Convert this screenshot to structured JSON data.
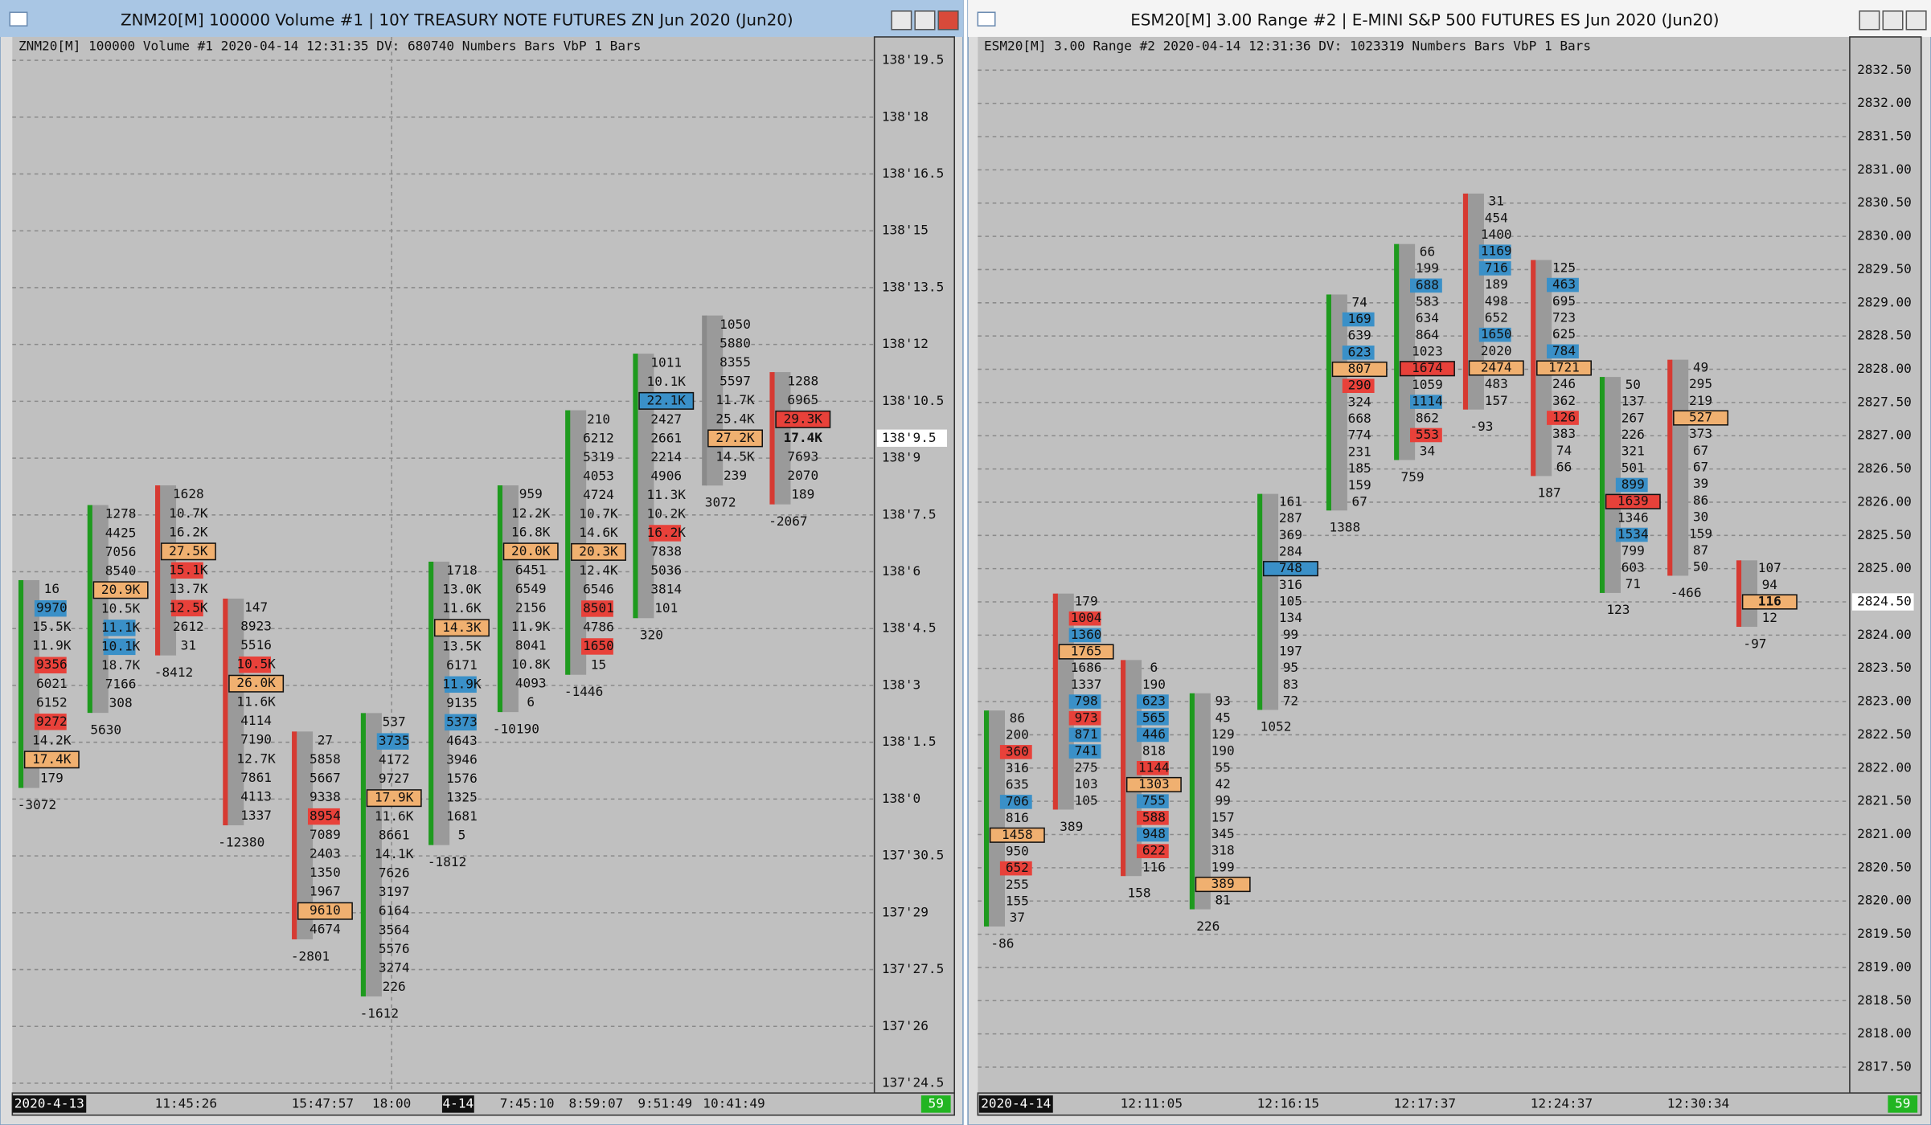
{
  "windows": [
    {
      "title": "ZNM20[M]  100000 Volume  #1 | 10Y TREASURY NOTE FUTURES ZN Jun 2020 (Jun20)",
      "info": "ZNM20[M]  100000 Volume  #1 2020-04-14 12:31:35 DV: 680740 Numbers Bars  VbP 1 Bars",
      "price_labels": [
        "138'19.5",
        "138'18",
        "138'16.5",
        "138'15",
        "138'13.5",
        "138'12",
        "138'10.5",
        "138'9",
        "138'7.5",
        "138'6",
        "138'4.5",
        "138'3",
        "138'1.5",
        "138'0",
        "137'30.5",
        "137'29",
        "137'27.5",
        "137'26",
        "137'24.5"
      ],
      "current_price": "138'9.5",
      "time_labels": [
        "2020-4-13",
        "11:45:26",
        "15:47:57",
        "18:00",
        "4-14",
        "7:45:10",
        "8:59:07",
        "9:51:49",
        "10:41:49"
      ],
      "status": "59",
      "columns": [
        {
          "bar_color": "#1e9a1e",
          "delta": "-3072",
          "cells": [
            "16",
            {
              "text": "9970",
              "color": "#3a90c8"
            },
            "15.5K",
            "11.9K",
            {
              "text": "9356",
              "color": "#e8413a"
            },
            "6021",
            "6152",
            {
              "text": "9272",
              "color": "#e8413a"
            },
            "14.2K",
            {
              "text": "17.4K",
              "color": "#f0b070",
              "box": true
            },
            "179"
          ]
        },
        {
          "bar_color": "#1e9a1e",
          "delta": "5630",
          "cells": [
            "1278",
            "4425",
            "7056",
            "8540",
            {
              "text": "20.9K",
              "color": "#f0b070",
              "box": true
            },
            "10.5K",
            {
              "text": "11.1K",
              "color": "#3a90c8"
            },
            {
              "text": "10.1K",
              "color": "#3a90c8"
            },
            "18.7K",
            "7166",
            "308"
          ]
        },
        {
          "bar_color": "#d63a32",
          "delta": "-8412",
          "cells": [
            "1628",
            "10.7K",
            "16.2K",
            {
              "text": "27.5K",
              "color": "#f0b070",
              "box": true
            },
            {
              "text": "15.1K",
              "color": "#e8413a"
            },
            "13.7K",
            {
              "text": "12.5K",
              "color": "#e8413a"
            },
            "2612",
            "31"
          ]
        },
        {
          "bar_color": "#d63a32",
          "delta": "-12380",
          "cells": [
            "147",
            "8923",
            "5516",
            {
              "text": "10.5K",
              "color": "#e8413a"
            },
            {
              "text": "26.0K",
              "color": "#f0b070",
              "box": true
            },
            "11.6K",
            "4114",
            "7190",
            "12.7K",
            "7861",
            "4113",
            "1337"
          ]
        },
        {
          "bar_color": "#d63a32",
          "delta": "-2801",
          "cells": [
            "27",
            "5858",
            "5667",
            "9338",
            {
              "text": "8954",
              "color": "#e8413a"
            },
            "7089",
            "2403",
            "1350",
            "1967",
            {
              "text": "9610",
              "color": "#f0b070",
              "box": true
            },
            "4674"
          ]
        },
        {
          "bar_color": "#1e9a1e",
          "delta": "-1612",
          "cells": [
            "537",
            {
              "text": "3735",
              "color": "#3a90c8"
            },
            "4172",
            "9727",
            {
              "text": "17.9K",
              "color": "#f0b070",
              "box": true
            },
            "11.6K",
            "8661",
            "14.1K",
            "7626",
            "3197",
            "6164",
            "3564",
            "5576",
            "3274",
            "226"
          ]
        },
        {
          "bar_color": "#1e9a1e",
          "delta": "-1812",
          "cells": [
            "1718",
            "13.0K",
            "11.6K",
            {
              "text": "14.3K",
              "color": "#f0b070",
              "box": true
            },
            "13.5K",
            "6171",
            {
              "text": "11.9K",
              "color": "#3a90c8"
            },
            "9135",
            {
              "text": "5373",
              "color": "#3a90c8"
            },
            "4643",
            "3946",
            "1576",
            "1325",
            "1681",
            "5"
          ]
        },
        {
          "bar_color": "#1e9a1e",
          "delta": "-10190",
          "cells": [
            "959",
            "12.2K",
            "16.8K",
            {
              "text": "20.0K",
              "color": "#f0b070",
              "box": true
            },
            "6451",
            "6549",
            "2156",
            "11.9K",
            "8041",
            "10.8K",
            "4093",
            "6"
          ]
        },
        {
          "bar_color": "#1e9a1e",
          "delta": "-1446",
          "cells": [
            "210",
            "6212",
            "5319",
            "4053",
            "4724",
            "10.7K",
            "14.6K",
            {
              "text": "20.3K",
              "color": "#f0b070",
              "box": true
            },
            "12.4K",
            "6546",
            {
              "text": "8501",
              "color": "#e8413a"
            },
            "4786",
            {
              "text": "1650",
              "color": "#e8413a"
            },
            "15"
          ]
        },
        {
          "bar_color": "#1e9a1e",
          "delta": "320",
          "cells": [
            "1011",
            "10.1K",
            {
              "text": "22.1K",
              "color": "#3a90c8",
              "box": true
            },
            "2427",
            "2661",
            "2214",
            "4906",
            "11.3K",
            "10.2K",
            {
              "text": "16.2K",
              "color": "#e8413a"
            },
            "7838",
            "5036",
            "3814",
            "101"
          ]
        },
        {
          "bar_color": "#8a8a8a",
          "delta": "3072",
          "cells": [
            "1050",
            "5880",
            "8355",
            "5597",
            "11.7K",
            "25.4K",
            {
              "text": "27.2K",
              "color": "#f0b070",
              "box": true
            },
            "14.5K",
            "239"
          ]
        },
        {
          "bar_color": "#d63a32",
          "delta": "-2067",
          "cells": [
            "1288",
            "6965",
            {
              "text": "29.3K",
              "color": "#e8413a",
              "box": true
            },
            {
              "text": "17.4K",
              "bold": true
            },
            "7693",
            "2070",
            "189"
          ]
        }
      ]
    },
    {
      "title": "ESM20[M]  3.00 Range  #2 | E-MINI S&P 500 FUTURES ES Jun 2020 (Jun20)",
      "info": "ESM20[M]  3.00 Range  #2 2020-04-14 12:31:36 DV: 1023319 Numbers Bars  VbP 1 Bars",
      "price_labels": [
        "2832.50",
        "2832.00",
        "2831.50",
        "2831.00",
        "2830.50",
        "2830.00",
        "2829.50",
        "2829.00",
        "2828.50",
        "2828.00",
        "2827.50",
        "2827.00",
        "2826.50",
        "2826.00",
        "2825.50",
        "2825.00",
        "2824.50",
        "2824.00",
        "2823.50",
        "2823.00",
        "2822.50",
        "2822.00",
        "2821.50",
        "2821.00",
        "2820.50",
        "2820.00",
        "2819.50",
        "2819.00",
        "2818.50",
        "2818.00",
        "2817.50"
      ],
      "current_price": "2824.50",
      "time_labels": [
        "2020-4-14",
        "12:11:05",
        "12:16:15",
        "12:17:37",
        "12:24:37",
        "12:30:34"
      ],
      "status": "59",
      "columns": [
        {
          "bar_color": "#1e9a1e",
          "delta": "-86",
          "cells": [
            "86",
            "200",
            {
              "text": "360",
              "color": "#e8413a"
            },
            "316",
            "635",
            {
              "text": "706",
              "color": "#3a90c8"
            },
            "816",
            {
              "text": "1458",
              "color": "#f0b070",
              "box": true
            },
            "950",
            {
              "text": "652",
              "color": "#e8413a"
            },
            "255",
            "155",
            "37"
          ]
        },
        {
          "bar_color": "#d63a32",
          "delta": "389",
          "cells": [
            "179",
            {
              "text": "1004",
              "color": "#e8413a"
            },
            {
              "text": "1360",
              "color": "#3a90c8"
            },
            {
              "text": "1765",
              "color": "#f0b070",
              "box": true
            },
            "1686",
            "1337",
            {
              "text": "798",
              "color": "#3a90c8"
            },
            {
              "text": "973",
              "color": "#e8413a"
            },
            {
              "text": "871",
              "color": "#3a90c8"
            },
            {
              "text": "741",
              "color": "#3a90c8"
            },
            "275",
            "103",
            "105"
          ]
        },
        {
          "bar_color": "#d63a32",
          "delta": "158",
          "cells": [
            "6",
            "190",
            {
              "text": "623",
              "color": "#3a90c8"
            },
            {
              "text": "565",
              "color": "#3a90c8"
            },
            {
              "text": "446",
              "color": "#3a90c8"
            },
            "818",
            {
              "text": "1144",
              "color": "#e8413a"
            },
            {
              "text": "1303",
              "color": "#f0b070",
              "box": true
            },
            {
              "text": "755",
              "color": "#3a90c8"
            },
            {
              "text": "588",
              "color": "#e8413a"
            },
            {
              "text": "948",
              "color": "#3a90c8"
            },
            {
              "text": "622",
              "color": "#e8413a"
            },
            "116"
          ]
        },
        {
          "bar_color": "#1e9a1e",
          "delta": "226",
          "cells": [
            "93",
            "45",
            "129",
            "190",
            "55",
            "42",
            "99",
            "157",
            "345",
            "318",
            "199",
            {
              "text": "389",
              "color": "#f0b070",
              "box": true
            },
            "81"
          ]
        },
        {
          "bar_color": "#1e9a1e",
          "delta": "1052",
          "cells": [
            "161",
            "287",
            "369",
            "284",
            {
              "text": "748",
              "color": "#3a90c8",
              "box": true
            },
            "316",
            "105",
            "134",
            "99",
            "197",
            "95",
            "83",
            "72"
          ]
        },
        {
          "bar_color": "#1e9a1e",
          "delta": "1388",
          "cells": [
            "74",
            {
              "text": "169",
              "color": "#3a90c8"
            },
            "639",
            {
              "text": "623",
              "color": "#3a90c8"
            },
            {
              "text": "807",
              "color": "#f0b070",
              "box": true
            },
            {
              "text": "290",
              "color": "#e8413a"
            },
            "324",
            "668",
            "774",
            "231",
            "185",
            "159",
            "67"
          ]
        },
        {
          "bar_color": "#1e9a1e",
          "delta": "759",
          "cells": [
            "66",
            "199",
            {
              "text": "688",
              "color": "#3a90c8"
            },
            "583",
            "634",
            "864",
            "1023",
            {
              "text": "1674",
              "color": "#e8413a",
              "box": true
            },
            "1059",
            {
              "text": "1114",
              "color": "#3a90c8"
            },
            "862",
            {
              "text": "553",
              "color": "#e8413a"
            },
            "34"
          ]
        },
        {
          "bar_color": "#d63a32",
          "delta": "-93",
          "cells": [
            "31",
            "454",
            "1400",
            {
              "text": "1169",
              "color": "#3a90c8"
            },
            {
              "text": "716",
              "color": "#3a90c8"
            },
            "189",
            "498",
            "652",
            {
              "text": "1650",
              "color": "#3a90c8"
            },
            "2020",
            {
              "text": "2474",
              "color": "#f0b070",
              "box": true
            },
            "483",
            "157"
          ]
        },
        {
          "bar_color": "#d63a32",
          "delta": "187",
          "cells": [
            "125",
            {
              "text": "463",
              "color": "#3a90c8"
            },
            "695",
            "723",
            "625",
            {
              "text": "784",
              "color": "#3a90c8"
            },
            {
              "text": "1721",
              "color": "#f0b070",
              "box": true
            },
            "246",
            "362",
            {
              "text": "126",
              "color": "#e8413a"
            },
            "383",
            "74",
            "66"
          ]
        },
        {
          "bar_color": "#1e9a1e",
          "delta": "123",
          "cells": [
            "50",
            "137",
            "267",
            "226",
            "321",
            "501",
            {
              "text": "899",
              "color": "#3a90c8"
            },
            {
              "text": "1639",
              "color": "#e8413a",
              "box": true
            },
            "1346",
            {
              "text": "1534",
              "color": "#3a90c8"
            },
            "799",
            "603",
            "71"
          ]
        },
        {
          "bar_color": "#d63a32",
          "delta": "-466",
          "cells": [
            "49",
            "295",
            "219",
            {
              "text": "527",
              "color": "#f0b070",
              "box": true
            },
            "373",
            "67",
            "67",
            "39",
            "86",
            "30",
            "159",
            "87",
            "50"
          ]
        },
        {
          "bar_color": "#d63a32",
          "delta": "-97",
          "cells": [
            "107",
            "94",
            {
              "text": "116",
              "color": "#f0b070",
              "box": true,
              "bold": true
            },
            "12"
          ]
        }
      ]
    }
  ]
}
